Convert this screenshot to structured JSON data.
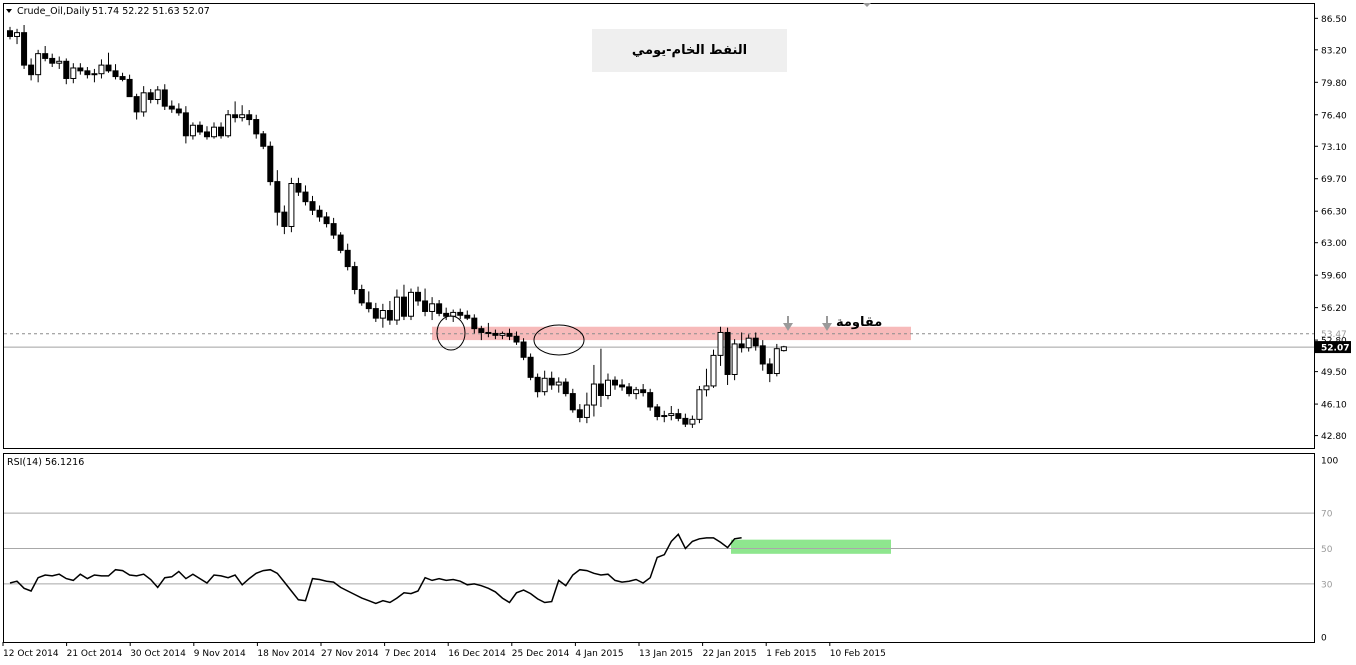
{
  "header": {
    "symbol": "Crude_Oil,Daily",
    "ohlc": "51.74 52.22 51.63 52.07",
    "title": "النفط الخام-يومي"
  },
  "annotations": {
    "resistance_label": "مقاومة"
  },
  "price_labels": {
    "current": "52.07",
    "resistance": "53.47"
  },
  "rsi": {
    "label": "RSI(14) 56.1216"
  },
  "colors": {
    "bull": "#ffffff",
    "bear": "#000000",
    "resistance_zone": "#f4a3a3",
    "rsi_zone": "#8ee68e",
    "current_price_tag": "#000000"
  },
  "chart_data": [
    {
      "type": "candlestick",
      "title": "النفط الخام-يومي",
      "ylim": [
        41.5,
        88.0
      ],
      "yticks": [
        "86.50",
        "83.20",
        "79.80",
        "76.40",
        "73.10",
        "69.70",
        "66.30",
        "63.00",
        "59.60",
        "56.20",
        "52.80",
        "49.50",
        "46.10",
        "42.80"
      ],
      "xticks": [
        "12 Oct 2014",
        "21 Oct 2014",
        "30 Oct 2014",
        "9 Nov 2014",
        "18 Nov 2014",
        "27 Nov 2014",
        "7 Dec 2014",
        "16 Dec 2014",
        "25 Dec 2014",
        "4 Jan 2015",
        "13 Jan 2015",
        "22 Jan 2015",
        "1 Feb 2015",
        "10 Feb 2015"
      ],
      "resistance_zone": [
        52.8,
        54.2
      ],
      "resistance_line": 53.47,
      "current_price": 52.07,
      "candles": [
        [
          85.2,
          85.6,
          84.3,
          84.6
        ],
        [
          84.6,
          85.4,
          83.8,
          85.0
        ],
        [
          85.0,
          85.8,
          81.2,
          81.6
        ],
        [
          81.6,
          82.3,
          80.0,
          80.6
        ],
        [
          80.6,
          83.2,
          79.8,
          82.8
        ],
        [
          82.8,
          83.6,
          82.0,
          82.3
        ],
        [
          82.3,
          82.8,
          81.4,
          81.8
        ],
        [
          81.8,
          82.5,
          81.2,
          82.0
        ],
        [
          82.0,
          82.3,
          79.6,
          80.2
        ],
        [
          80.2,
          81.8,
          79.7,
          81.3
        ],
        [
          81.3,
          81.8,
          80.6,
          81.0
        ],
        [
          81.0,
          81.4,
          80.2,
          80.6
        ],
        [
          80.6,
          81.2,
          79.8,
          80.7
        ],
        [
          80.7,
          82.2,
          80.2,
          81.6
        ],
        [
          81.6,
          82.9,
          80.8,
          81.0
        ],
        [
          81.0,
          81.7,
          80.1,
          80.4
        ],
        [
          80.4,
          80.8,
          79.9,
          80.1
        ],
        [
          80.1,
          80.6,
          78.6,
          78.3
        ],
        [
          78.3,
          78.6,
          75.9,
          76.7
        ],
        [
          76.7,
          79.4,
          76.2,
          78.7
        ],
        [
          78.7,
          79.1,
          77.6,
          78.0
        ],
        [
          78.0,
          79.4,
          77.5,
          79.0
        ],
        [
          79.0,
          79.6,
          76.9,
          77.3
        ],
        [
          77.3,
          77.9,
          76.6,
          77.0
        ],
        [
          77.0,
          77.6,
          76.3,
          76.6
        ],
        [
          76.6,
          77.3,
          73.4,
          74.2
        ],
        [
          74.2,
          75.6,
          73.8,
          75.3
        ],
        [
          75.3,
          75.7,
          74.3,
          74.6
        ],
        [
          74.6,
          75.2,
          73.8,
          74.1
        ],
        [
          74.1,
          75.6,
          73.9,
          75.1
        ],
        [
          75.1,
          75.6,
          73.9,
          74.2
        ],
        [
          74.2,
          76.9,
          74.0,
          76.4
        ],
        [
          76.4,
          77.8,
          75.6,
          76.1
        ],
        [
          76.1,
          77.4,
          75.7,
          76.4
        ],
        [
          76.4,
          76.9,
          75.3,
          75.9
        ],
        [
          75.9,
          76.4,
          73.9,
          74.4
        ],
        [
          74.4,
          74.7,
          72.8,
          73.1
        ],
        [
          73.1,
          73.6,
          69.0,
          69.4
        ],
        [
          69.4,
          70.6,
          64.8,
          66.2
        ],
        [
          66.2,
          66.9,
          63.9,
          64.7
        ],
        [
          64.7,
          69.8,
          64.1,
          69.2
        ],
        [
          69.2,
          69.8,
          67.9,
          68.3
        ],
        [
          68.3,
          69.0,
          66.9,
          67.3
        ],
        [
          67.3,
          67.9,
          65.9,
          66.4
        ],
        [
          66.4,
          66.9,
          65.2,
          65.7
        ],
        [
          65.7,
          66.2,
          64.6,
          65.0
        ],
        [
          65.0,
          65.6,
          63.4,
          63.8
        ],
        [
          63.8,
          64.1,
          61.9,
          62.2
        ],
        [
          62.2,
          62.9,
          60.1,
          60.5
        ],
        [
          60.5,
          61.0,
          57.6,
          58.1
        ],
        [
          58.1,
          58.6,
          56.4,
          56.7
        ],
        [
          56.7,
          57.9,
          55.7,
          56.1
        ],
        [
          56.1,
          56.7,
          54.7,
          55.1
        ],
        [
          55.1,
          56.6,
          54.1,
          55.9
        ],
        [
          55.9,
          56.9,
          54.4,
          54.9
        ],
        [
          54.9,
          58.1,
          54.4,
          57.3
        ],
        [
          57.3,
          58.6,
          54.9,
          55.3
        ],
        [
          55.3,
          58.2,
          54.9,
          57.8
        ],
        [
          57.8,
          58.4,
          56.4,
          56.9
        ],
        [
          56.9,
          58.2,
          55.3,
          55.8
        ],
        [
          55.8,
          57.3,
          54.9,
          56.6
        ],
        [
          56.6,
          57.0,
          55.3,
          55.6
        ],
        [
          55.6,
          56.2,
          54.9,
          55.3
        ],
        [
          55.3,
          56.0,
          54.7,
          55.7
        ],
        [
          55.7,
          56.1,
          55.0,
          55.4
        ],
        [
          55.4,
          55.9,
          54.9,
          55.1
        ],
        [
          55.1,
          55.5,
          53.5,
          54.0
        ],
        [
          54.0,
          54.3,
          52.8,
          53.6
        ],
        [
          53.6,
          54.6,
          53.1,
          53.5
        ],
        [
          53.5,
          53.9,
          52.9,
          53.3
        ],
        [
          53.3,
          53.7,
          52.9,
          53.5
        ],
        [
          53.5,
          54.0,
          52.8,
          53.2
        ],
        [
          53.2,
          53.7,
          52.3,
          52.6
        ],
        [
          52.6,
          53.0,
          50.7,
          51.0
        ],
        [
          51.0,
          51.4,
          48.6,
          48.9
        ],
        [
          48.9,
          49.3,
          46.8,
          47.4
        ],
        [
          47.4,
          49.6,
          47.0,
          48.8
        ],
        [
          48.8,
          49.5,
          47.6,
          48.1
        ],
        [
          48.1,
          48.9,
          47.3,
          48.4
        ],
        [
          48.4,
          48.8,
          46.9,
          47.2
        ],
        [
          47.2,
          47.7,
          45.2,
          45.5
        ],
        [
          45.5,
          46.1,
          44.2,
          44.7
        ],
        [
          44.7,
          47.3,
          44.1,
          46.0
        ],
        [
          46.0,
          50.2,
          44.8,
          48.2
        ],
        [
          48.2,
          51.9,
          45.8,
          47.0
        ],
        [
          47.0,
          49.3,
          46.6,
          48.6
        ],
        [
          48.6,
          49.0,
          47.6,
          48.1
        ],
        [
          48.1,
          48.7,
          47.5,
          47.9
        ],
        [
          47.9,
          48.3,
          46.9,
          47.2
        ],
        [
          47.2,
          47.9,
          46.6,
          47.6
        ],
        [
          47.6,
          48.2,
          46.9,
          47.3
        ],
        [
          47.3,
          47.7,
          45.4,
          45.8
        ],
        [
          45.8,
          46.1,
          44.4,
          44.8
        ],
        [
          44.8,
          45.4,
          44.2,
          44.9
        ],
        [
          44.9,
          45.9,
          44.4,
          45.1
        ],
        [
          45.1,
          45.6,
          44.3,
          44.6
        ],
        [
          44.6,
          45.1,
          43.7,
          44.0
        ],
        [
          44.0,
          44.9,
          43.6,
          44.5
        ],
        [
          44.5,
          48.0,
          44.1,
          47.6
        ],
        [
          47.6,
          49.8,
          46.9,
          48.0
        ],
        [
          48.0,
          51.8,
          47.8,
          51.2
        ],
        [
          51.2,
          54.2,
          50.1,
          53.6
        ],
        [
          53.6,
          54.1,
          48.1,
          49.2
        ],
        [
          49.2,
          52.9,
          48.6,
          52.4
        ],
        [
          52.4,
          53.6,
          51.5,
          52.0
        ],
        [
          52.0,
          53.4,
          51.6,
          53.0
        ],
        [
          53.0,
          53.6,
          51.7,
          52.2
        ],
        [
          52.2,
          52.8,
          49.6,
          50.3
        ],
        [
          50.3,
          50.9,
          48.4,
          49.3
        ],
        [
          49.3,
          52.4,
          49.0,
          51.9
        ],
        [
          51.7,
          52.2,
          51.6,
          52.1
        ]
      ]
    },
    {
      "type": "line",
      "title": "RSI(14) 56.1216",
      "ylim": [
        0,
        100
      ],
      "yticks": [
        "100",
        "70",
        "50",
        "30",
        "0"
      ],
      "levels": [
        70,
        50,
        30
      ],
      "highlight_zone": [
        47,
        55
      ],
      "values": [
        30.5,
        31.5,
        27.5,
        26.0,
        33.5,
        35.0,
        34.5,
        35.5,
        33.0,
        32.0,
        35.5,
        33.0,
        35.0,
        34.5,
        34.5,
        38.0,
        37.5,
        35.0,
        34.5,
        35.5,
        32.5,
        28.0,
        33.5,
        34.0,
        37.0,
        33.0,
        35.5,
        33.0,
        30.5,
        35.0,
        34.5,
        33.5,
        35.0,
        29.5,
        33.0,
        36.0,
        37.5,
        38.0,
        36.0,
        31.0,
        26.0,
        21.0,
        20.5,
        33.0,
        32.5,
        31.5,
        31.0,
        28.0,
        26.0,
        24.0,
        22.0,
        20.5,
        19.0,
        20.5,
        19.5,
        22.0,
        25.0,
        24.5,
        26.0,
        33.5,
        32.0,
        33.0,
        32.0,
        32.5,
        31.5,
        29.5,
        30.0,
        29.0,
        27.5,
        25.5,
        22.0,
        19.5,
        25.0,
        26.5,
        24.5,
        21.5,
        19.5,
        20.0,
        32.0,
        29.0,
        35.0,
        38.0,
        37.5,
        36.0,
        35.0,
        35.5,
        32.0,
        31.0,
        31.5,
        32.5,
        30.5,
        33.5,
        45.0,
        46.5,
        54.0,
        58.0,
        50.0,
        54.0,
        55.5,
        56.0,
        56.0,
        53.5,
        50.5,
        55.5,
        56.1
      ]
    }
  ]
}
